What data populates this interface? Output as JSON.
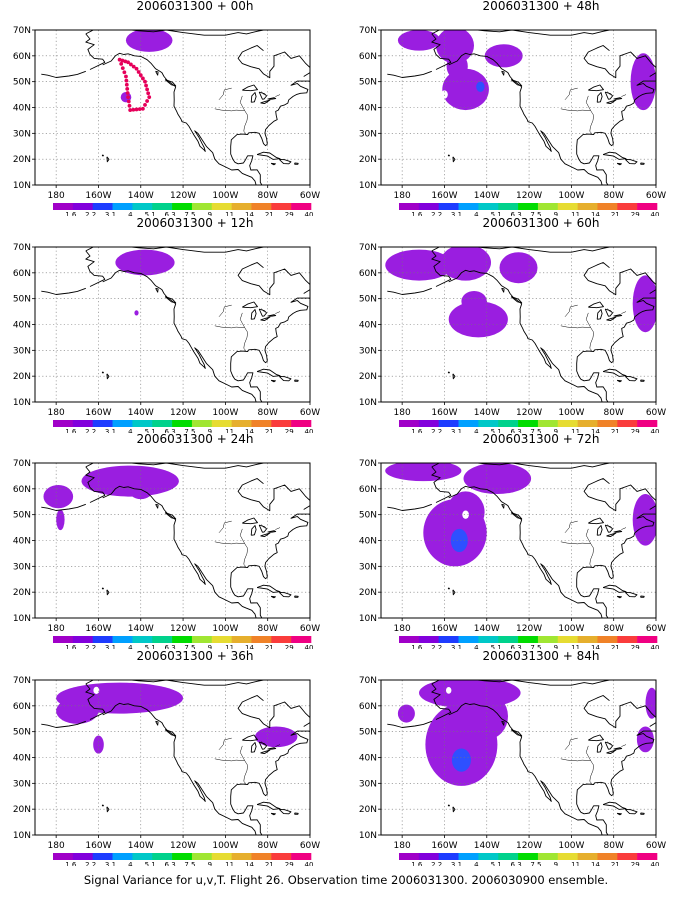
{
  "caption": "Signal Variance for u,v,T. Flight 26. Observation time 2006031300. 2006030900 ensemble.",
  "colorbar": {
    "colors": [
      "#a000c8",
      "#8200dc",
      "#1e3cff",
      "#00a0ff",
      "#00c8c8",
      "#00d28c",
      "#00dc00",
      "#a0e632",
      "#e6dc32",
      "#e6af2d",
      "#f08228",
      "#fa3c3c",
      "#f00082"
    ],
    "labels": [
      "1.6",
      "2.2",
      "3.1",
      "4",
      "5.1",
      "6.3",
      "7.5",
      "9",
      "11",
      "14",
      "21",
      "29",
      "40"
    ]
  },
  "lat_labels": [
    "70N",
    "60N",
    "50N",
    "40N",
    "30N",
    "20N",
    "10N"
  ],
  "lon_labels": [
    "180",
    "160W",
    "140W",
    "120W",
    "100W",
    "80W",
    "60W"
  ],
  "panels": [
    {
      "title": "2006031300 + 00h",
      "id": "p00"
    },
    {
      "title": "2006031300 + 48h",
      "id": "p48"
    },
    {
      "title": "2006031300 + 12h",
      "id": "p12"
    },
    {
      "title": "2006031300 + 60h",
      "id": "p60"
    },
    {
      "title": "2006031300 + 24h",
      "id": "p24"
    },
    {
      "title": "2006031300 + 72h",
      "id": "p72"
    },
    {
      "title": "2006031300 + 36h",
      "id": "p36"
    },
    {
      "title": "2006031300 + 84h",
      "id": "p84"
    }
  ]
}
